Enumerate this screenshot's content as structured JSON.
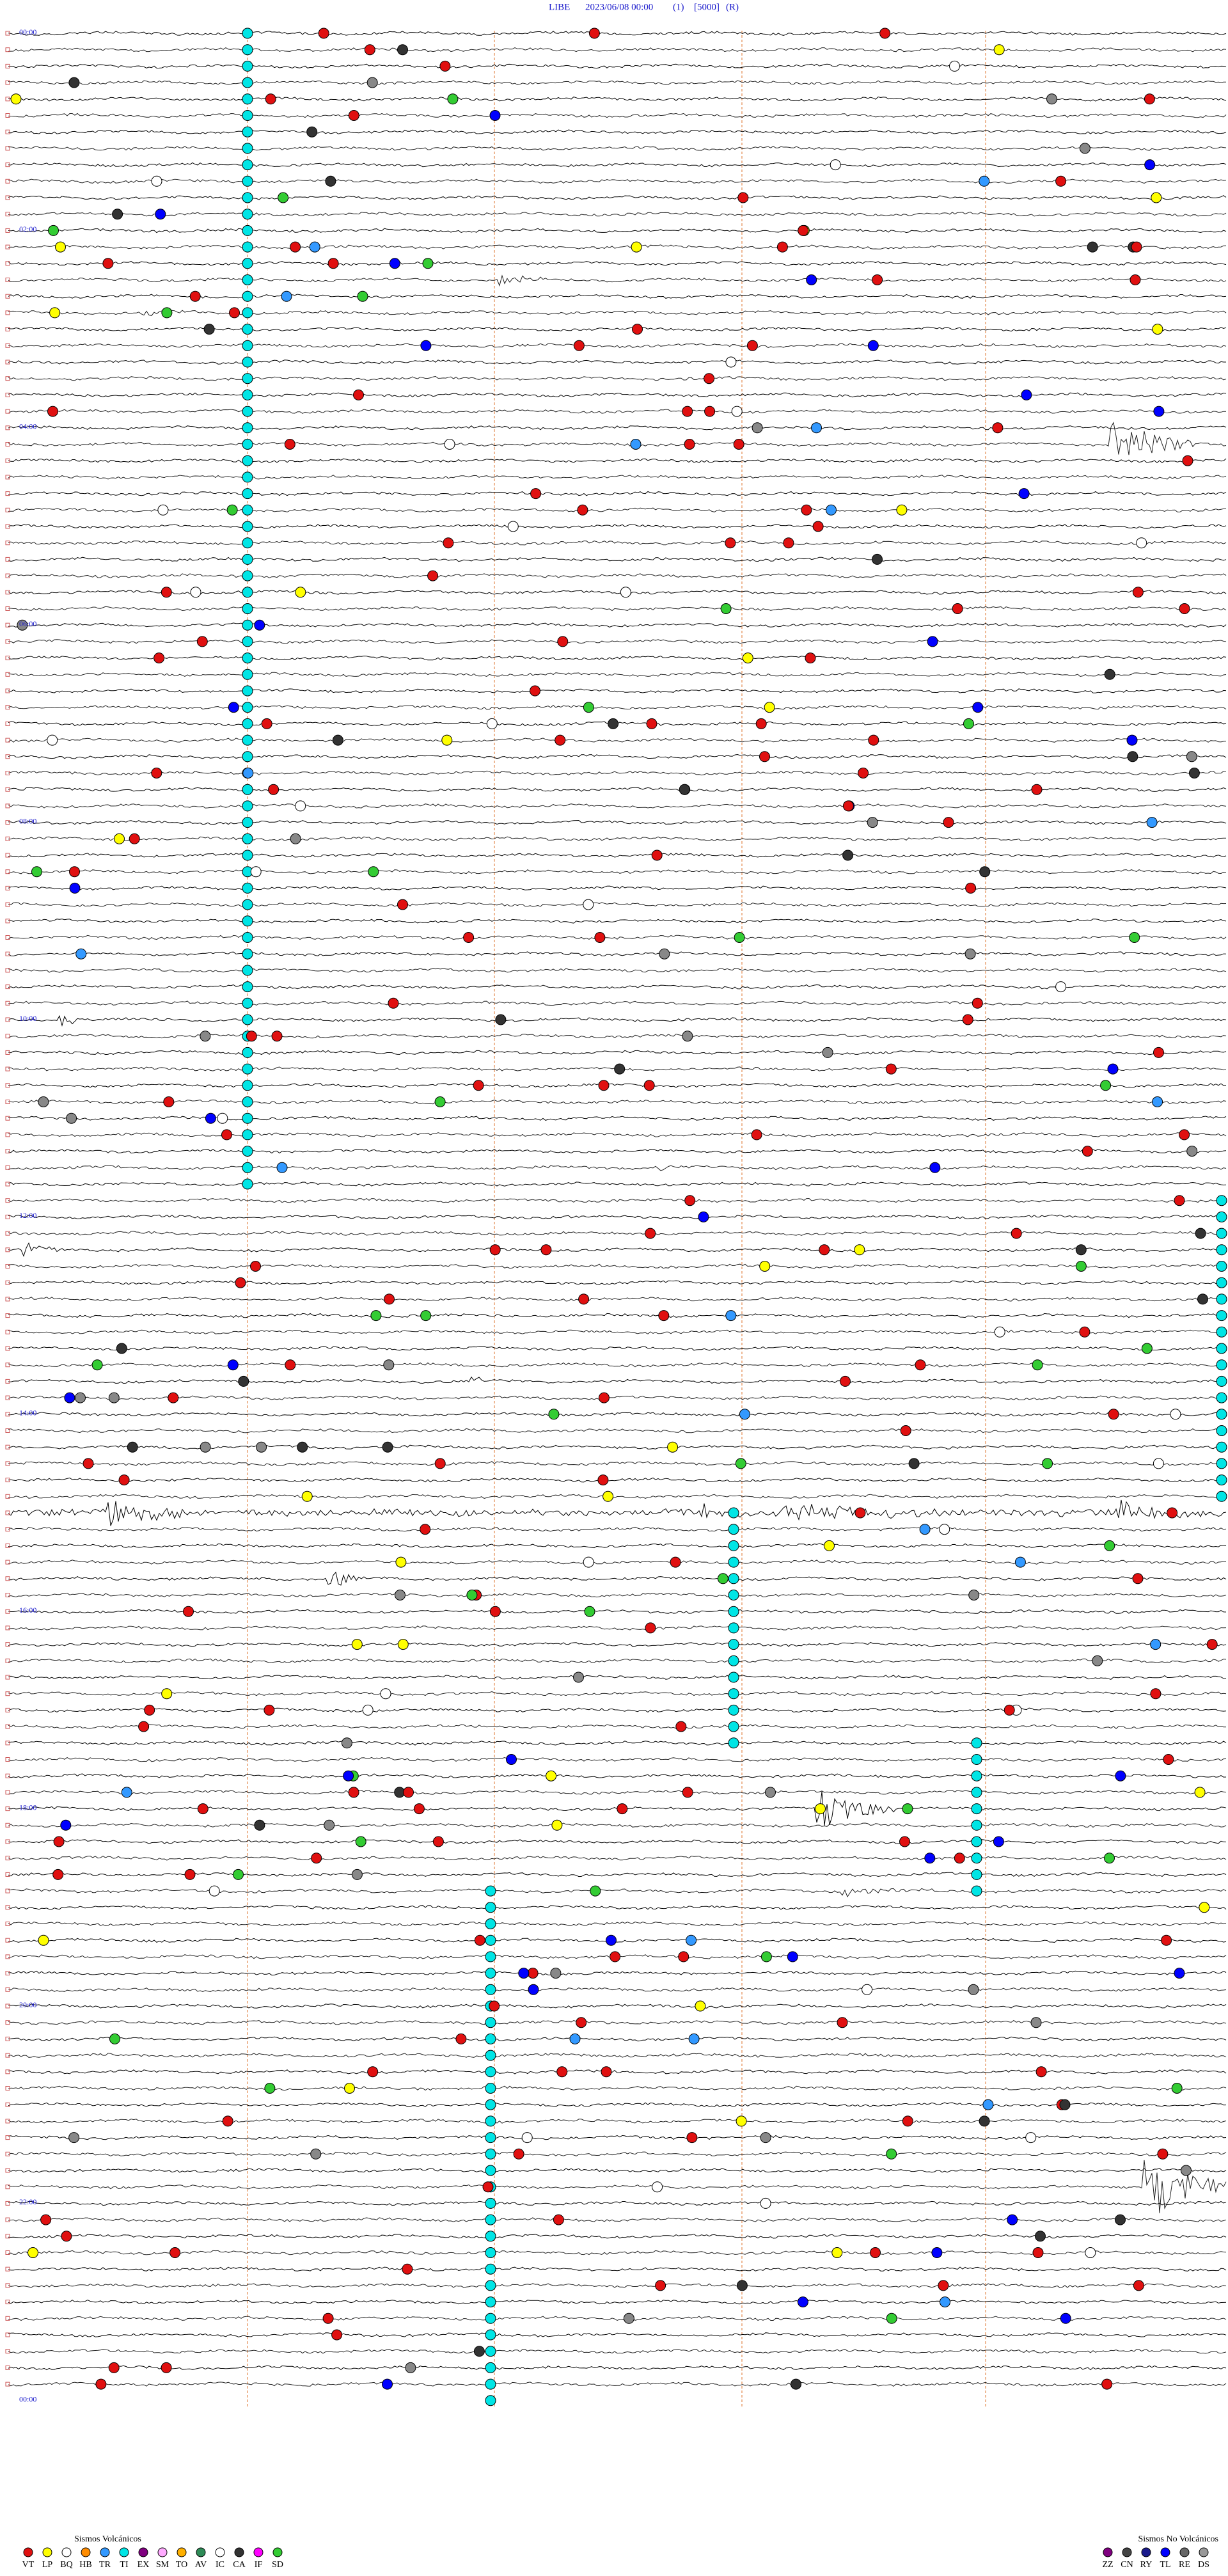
{
  "header": {
    "station": "LIBE",
    "date": "2023/06/08 00:00",
    "channel": "(1)",
    "gain": "[5000]",
    "mode": "(R)"
  },
  "time_labels": [
    "00:00",
    "02:00",
    "04:00",
    "06:00",
    "08:00",
    "10:00",
    "12:00",
    "14:00",
    "16:00",
    "18:00",
    "20:00",
    "22:00",
    "00:00"
  ],
  "legend": {
    "volcanic": {
      "title": "Sismos Volcánicos",
      "items": [
        {
          "code": "VT",
          "color": "#e01010"
        },
        {
          "code": "LP",
          "color": "#ffff00"
        },
        {
          "code": "BQ",
          "color": "#ffffff"
        },
        {
          "code": "HB",
          "color": "#ff8c00"
        },
        {
          "code": "TR",
          "color": "#3399ff"
        },
        {
          "code": "TI",
          "color": "#00e5e5"
        },
        {
          "code": "EX",
          "color": "#800080"
        },
        {
          "code": "SM",
          "color": "#ffaaff"
        },
        {
          "code": "TO",
          "color": "#ffb000"
        },
        {
          "code": "AV",
          "color": "#2e8b57"
        },
        {
          "code": "IC",
          "color": "#ffffff"
        },
        {
          "code": "CA",
          "color": "#333333"
        },
        {
          "code": "IF",
          "color": "#ff00ff"
        },
        {
          "code": "SD",
          "color": "#33cc33"
        }
      ]
    },
    "non_volcanic": {
      "title": "Sismos No Volcánicos",
      "items": [
        {
          "code": "ZZ",
          "color": "#800080"
        },
        {
          "code": "CN",
          "color": "#444444"
        },
        {
          "code": "RY",
          "color": "#1a1a8c"
        },
        {
          "code": "TL",
          "color": "#0000ff"
        },
        {
          "code": "RE",
          "color": "#666666"
        },
        {
          "code": "DS",
          "color": "#999999"
        }
      ]
    }
  }
}
